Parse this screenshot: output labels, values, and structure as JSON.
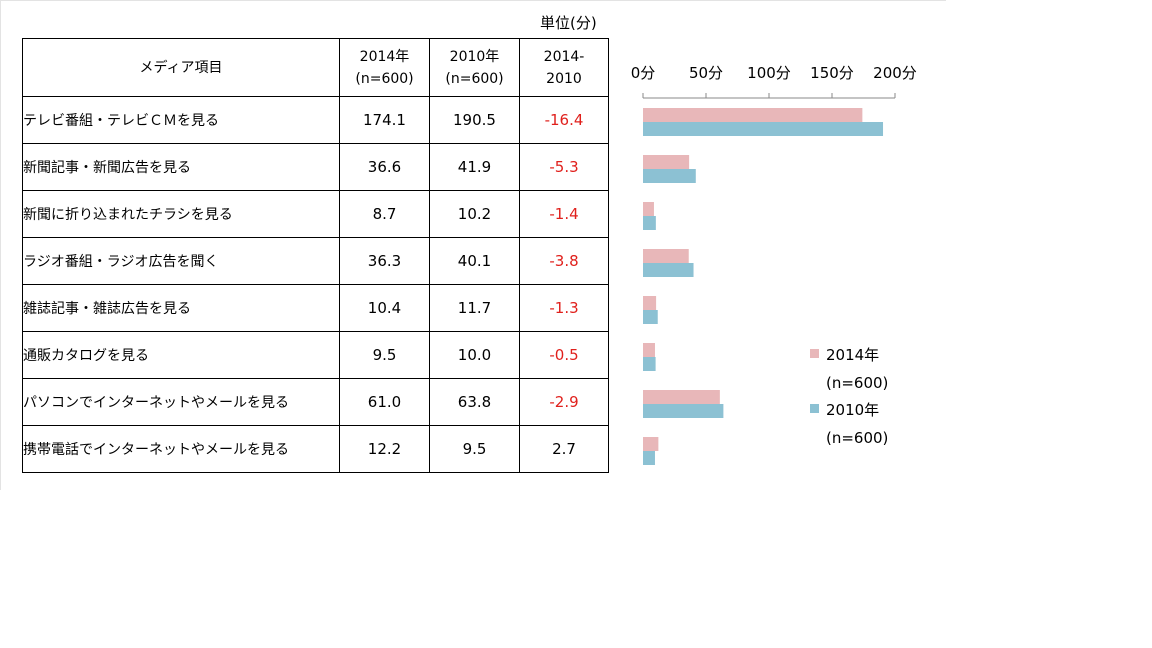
{
  "unit_label": "単位(分)",
  "table": {
    "headers": {
      "item": "メディア項目",
      "y2014": [
        "2014年",
        "(n=600)"
      ],
      "y2010": [
        "2010年",
        "(n=600)"
      ],
      "diff": [
        "2014-",
        "2010"
      ]
    },
    "rows": [
      {
        "label": "テレビ番組・テレビＣＭを見る",
        "v2014": "174.1",
        "v2010": "190.5",
        "diff": "-16.4"
      },
      {
        "label": "新聞記事・新聞広告を見る",
        "v2014": "36.6",
        "v2010": "41.9",
        "diff": "-5.3"
      },
      {
        "label": "新聞に折り込まれたチラシを見る",
        "v2014": "8.7",
        "v2010": "10.2",
        "diff": "-1.4"
      },
      {
        "label": "ラジオ番組・ラジオ広告を聞く",
        "v2014": "36.3",
        "v2010": "40.1",
        "diff": "-3.8"
      },
      {
        "label": "雑誌記事・雑誌広告を見る",
        "v2014": "10.4",
        "v2010": "11.7",
        "diff": "-1.3"
      },
      {
        "label": "通販カタログを見る",
        "v2014": "9.5",
        "v2010": "10.0",
        "diff": "-0.5"
      },
      {
        "label": "パソコンでインターネットやメールを見る",
        "v2014": "61.0",
        "v2010": "63.8",
        "diff": "-2.9"
      },
      {
        "label": "携帯電話でインターネットやメールを見る",
        "v2014": "12.2",
        "v2010": "9.5",
        "diff": "2.7"
      }
    ]
  },
  "colors": {
    "negative": "#e0201c",
    "series2014": "#e8b7b9",
    "series2010": "#8cc1d3"
  },
  "chart_data": {
    "type": "bar",
    "orientation": "horizontal",
    "categories": [
      "テレビ番組・テレビＣＭを見る",
      "新聞記事・新聞広告を見る",
      "新聞に折り込まれたチラシを見る",
      "ラジオ番組・ラジオ広告を聞く",
      "雑誌記事・雑誌広告を見る",
      "通販カタログを見る",
      "パソコンでインターネットやメールを見る",
      "携帯電話でインターネットやメールを見る"
    ],
    "series": [
      {
        "name": "2014年 (n=600)",
        "legend_lines": [
          "2014年",
          "(n=600)"
        ],
        "color": "#e8b7b9",
        "values": [
          174.1,
          36.6,
          8.7,
          36.3,
          10.4,
          9.5,
          61.0,
          12.2
        ]
      },
      {
        "name": "2010年 (n=600)",
        "legend_lines": [
          "2010年",
          "(n=600)"
        ],
        "color": "#8cc1d3",
        "values": [
          190.5,
          41.9,
          10.2,
          40.1,
          11.7,
          10.0,
          63.8,
          9.5
        ]
      }
    ],
    "ticks": [
      0,
      50,
      100,
      150,
      200
    ],
    "tick_labels": [
      "0分",
      "50分",
      "100分",
      "150分",
      "200分"
    ],
    "xlim": [
      0,
      200
    ],
    "axis_position": "top",
    "legend_position": "right"
  }
}
